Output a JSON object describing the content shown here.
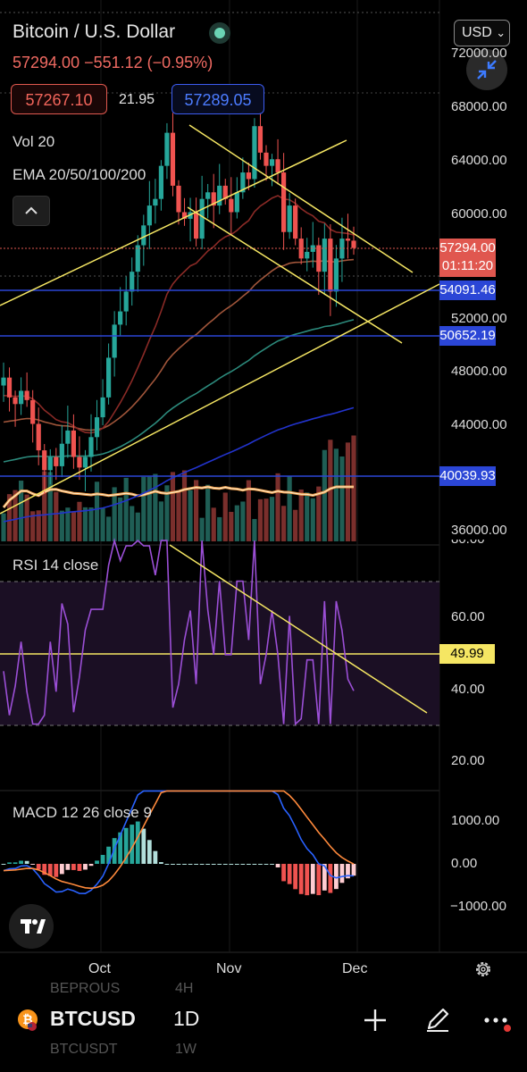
{
  "header": {
    "title": "Bitcoin / U.S. Dollar",
    "price_line": "57294.00 −551.12 (−0.95%)",
    "bid": "57267.10",
    "spread": "21.95",
    "ask": "57289.05",
    "currency": "USD",
    "currency_chevron": "⌄",
    "vol_label": "Vol 20",
    "ema_label": "EMA 20/50/100/200"
  },
  "price_axis": {
    "labels": [
      "72000.00",
      "68000.00",
      "64000.00",
      "60000.00",
      "52000.00",
      "48000.00",
      "44000.00",
      "36000.00"
    ],
    "tags": [
      {
        "text": "57294.00",
        "sub": "01:11:20",
        "color": "#e0574f"
      },
      {
        "text": "54091.46",
        "color": "#2b46d6"
      },
      {
        "text": "50652.19",
        "color": "#2b46d6"
      },
      {
        "text": "40039.93",
        "color": "#2b46d6"
      }
    ]
  },
  "rsi": {
    "label": "RSI 14 close",
    "axis": [
      "80.00",
      "60.00",
      "40.00",
      "20.00"
    ],
    "current": "49.99"
  },
  "macd": {
    "label": "MACD 12 26 close 9",
    "axis": [
      "1000.00",
      "0.00",
      "−1000.00"
    ]
  },
  "time_axis": [
    "Oct",
    "Nov",
    "Dec"
  ],
  "bottom": {
    "symbol": "BTCUSD",
    "interval": "1D",
    "ghost_top": "BEPROUS",
    "ghost_top_interval": "4H",
    "ghost_bottom": "BTCUSDT",
    "ghost_bottom_interval": "1W"
  },
  "icons": {
    "live": "live-dot-icon",
    "expand": "collapse-arrows-icon",
    "chevron": "chevron-up-icon",
    "settings": "gear-icon",
    "add": "plus-icon",
    "draw": "pen-icon",
    "more": "more-icon",
    "logo": "tradingview-logo-icon",
    "coin": "bitcoin-icon"
  },
  "colors": {
    "up": "#26a69a",
    "down": "#ef5350",
    "trendline": "#f5e663",
    "level": "#2b46d6",
    "ema20": "#8a2a26",
    "ema50": "#a0553a",
    "ema100": "#2c8a7c",
    "ema200": "#2233cc",
    "rsi": "#9b4fd6",
    "volma": "#f0a050"
  },
  "chart_data": {
    "type": "candlestick",
    "title": "Bitcoin / U.S. Dollar",
    "interval": "1D",
    "ylim": [
      35000,
      72000
    ],
    "x_ticks": [
      "Oct",
      "Nov",
      "Dec"
    ],
    "current_price": 57294.0,
    "change": -551.12,
    "change_pct": -0.95,
    "horizontal_levels": [
      54091.46,
      50652.19,
      40039.93
    ],
    "close_approx": [
      47500,
      46000,
      45500,
      46500,
      45800,
      44000,
      42000,
      40500,
      41500,
      40800,
      42500,
      43500,
      41500,
      40700,
      41500,
      43000,
      44500,
      46000,
      49000,
      51500,
      52500,
      54000,
      55500,
      57500,
      59000,
      60500,
      61000,
      63500,
      66000,
      62000,
      60000,
      59500,
      60000,
      58000,
      61000,
      61500,
      60500,
      62000,
      61000,
      60000,
      61500,
      63000,
      62500,
      66500,
      64500,
      63500,
      64000,
      63000,
      58500,
      60500,
      58000,
      56500,
      57000,
      57500,
      55500,
      58000,
      54000,
      56500,
      58000,
      57845,
      57294
    ],
    "rsi_current": 49.99,
    "rsi_axis": [
      20,
      40,
      60,
      80
    ],
    "macd_axis": [
      -1000,
      0,
      1000
    ]
  }
}
